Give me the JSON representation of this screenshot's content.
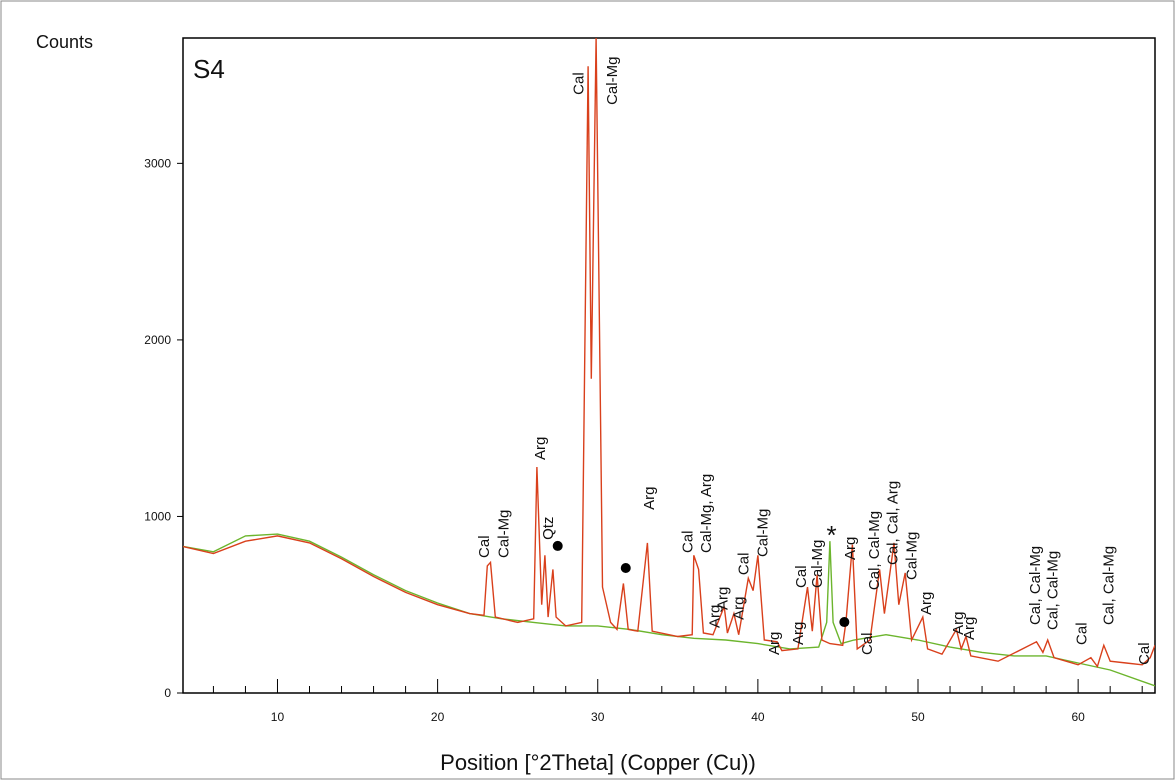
{
  "chart_data": {
    "type": "line",
    "title": "S4",
    "y_label": "Counts",
    "x_label": "Position [°2Theta] (Copper (Cu))",
    "xlim": [
      4.1,
      64.8
    ],
    "ylim": [
      0,
      3710
    ],
    "xticks": [
      10,
      20,
      30,
      40,
      50,
      60
    ],
    "xminor_ticks": [
      6,
      8,
      12,
      14,
      16,
      18,
      22,
      24,
      26,
      28,
      32,
      34,
      36,
      38,
      42,
      44,
      46,
      48,
      52,
      54,
      56,
      58,
      62,
      64
    ],
    "yticks": [
      0,
      1000,
      2000,
      3000
    ],
    "series": [
      {
        "color": "#d9401c",
        "x": [
          4.1,
          6,
          8,
          10,
          12,
          14,
          16,
          18,
          20,
          22,
          22.9,
          23.1,
          23.3,
          23.6,
          25,
          26,
          26.2,
          26.5,
          26.7,
          26.9,
          27.2,
          27.4,
          28,
          29,
          29.4,
          29.6,
          29.9,
          30.3,
          30.8,
          31.2,
          31.6,
          31.9,
          32.5,
          33.1,
          33.4,
          35,
          35.9,
          36.0,
          36.3,
          36.6,
          37.2,
          37.9,
          38.1,
          38.5,
          38.8,
          39.4,
          39.7,
          40.0,
          40.4,
          41.2,
          41.5,
          42.5,
          43.1,
          43.4,
          43.7,
          44.0,
          44.5,
          45.3,
          45.5,
          45.9,
          46.2,
          47.0,
          47.6,
          47.9,
          48.5,
          48.8,
          49.2,
          49.6,
          50.3,
          50.6,
          51.5,
          52.4,
          52.7,
          53.0,
          53.3,
          55,
          57.4,
          57.8,
          58.1,
          58.5,
          60,
          60.8,
          61.2,
          61.6,
          62,
          63,
          64,
          64.5,
          64.8
        ],
        "values": [
          830,
          790,
          860,
          890,
          850,
          760,
          660,
          570,
          500,
          450,
          440,
          720,
          740,
          430,
          400,
          420,
          1280,
          500,
          780,
          430,
          700,
          430,
          380,
          400,
          3550,
          1780,
          3710,
          600,
          400,
          360,
          620,
          360,
          350,
          850,
          350,
          320,
          330,
          780,
          700,
          340,
          330,
          490,
          340,
          450,
          330,
          650,
          580,
          780,
          300,
          290,
          240,
          250,
          600,
          350,
          670,
          300,
          280,
          270,
          400,
          840,
          250,
          300,
          700,
          450,
          850,
          500,
          680,
          300,
          430,
          250,
          220,
          360,
          250,
          320,
          210,
          180,
          290,
          230,
          300,
          200,
          160,
          200,
          150,
          270,
          180,
          170,
          160,
          200,
          270
        ]
      },
      {
        "color": "#6cb52d",
        "x": [
          4.1,
          6,
          8,
          10,
          12,
          14,
          16,
          18,
          20,
          22,
          24,
          26,
          28,
          30,
          32,
          34,
          36,
          38,
          40,
          42,
          43.8,
          44.3,
          44.5,
          44.7,
          45.2,
          46,
          48,
          50,
          52,
          54,
          56,
          58,
          60,
          62,
          64.8
        ],
        "values": [
          830,
          800,
          890,
          900,
          860,
          770,
          670,
          580,
          510,
          450,
          420,
          400,
          380,
          380,
          360,
          330,
          310,
          300,
          280,
          250,
          260,
          400,
          860,
          400,
          280,
          300,
          330,
          300,
          260,
          230,
          210,
          210,
          170,
          130,
          40
        ]
      }
    ],
    "annotations": [
      {
        "text": "Cal",
        "x": 22.9,
        "y": 765
      },
      {
        "text": "Cal-Mg",
        "x": 24.1,
        "y": 765
      },
      {
        "text": "Arg",
        "x": 26.4,
        "y": 1320
      },
      {
        "text": "Qtz",
        "x": 26.9,
        "y": 867
      },
      {
        "text": "Cal",
        "x": 28.8,
        "y": 3388
      },
      {
        "text": "Cal-Mg",
        "x": 30.9,
        "y": 3331
      },
      {
        "text": "Arg",
        "x": 33.2,
        "y": 1037
      },
      {
        "text": "Cal",
        "x": 35.6,
        "y": 793
      },
      {
        "text": "Cal-Mg, Arg",
        "x": 36.75,
        "y": 793
      },
      {
        "text": "Arg",
        "x": 37.3,
        "y": 368
      },
      {
        "text": "Arg",
        "x": 37.8,
        "y": 470
      },
      {
        "text": "Arg",
        "x": 38.8,
        "y": 414
      },
      {
        "text": "Cal",
        "x": 39.1,
        "y": 668
      },
      {
        "text": "Cal-Mg",
        "x": 40.3,
        "y": 770
      },
      {
        "text": "Arg",
        "x": 41.0,
        "y": 215
      },
      {
        "text": "Arg",
        "x": 42.5,
        "y": 272
      },
      {
        "text": "Cal",
        "x": 42.7,
        "y": 595
      },
      {
        "text": "Cal-Mg",
        "x": 43.7,
        "y": 595
      },
      {
        "text": "Arg",
        "x": 45.75,
        "y": 753
      },
      {
        "text": "Cal",
        "x": 46.8,
        "y": 215
      },
      {
        "text": "Cal, Cal-Mg",
        "x": 47.25,
        "y": 583
      },
      {
        "text": "Cal, Cal, Arg",
        "x": 48.4,
        "y": 725
      },
      {
        "text": "Cal-Mg",
        "x": 49.6,
        "y": 640
      },
      {
        "text": "Arg",
        "x": 50.5,
        "y": 442
      },
      {
        "text": "Arg",
        "x": 52.5,
        "y": 329
      },
      {
        "text": "Arg",
        "x": 53.2,
        "y": 300
      },
      {
        "text": "Cal, Cal-Mg",
        "x": 57.3,
        "y": 385
      },
      {
        "text": "Cal, Cal-Mg",
        "x": 58.4,
        "y": 357
      },
      {
        "text": "Cal",
        "x": 60.2,
        "y": 272
      },
      {
        "text": "Cal, Cal-Mg",
        "x": 61.9,
        "y": 385
      },
      {
        "text": "Cal",
        "x": 64.1,
        "y": 159
      }
    ],
    "star_annotations": [
      {
        "text": "*",
        "x": 44.6,
        "y": 923
      }
    ],
    "markers": [
      {
        "x": 27.5,
        "y": 833
      },
      {
        "x": 31.75,
        "y": 708
      },
      {
        "x": 45.4,
        "y": 402
      }
    ]
  }
}
